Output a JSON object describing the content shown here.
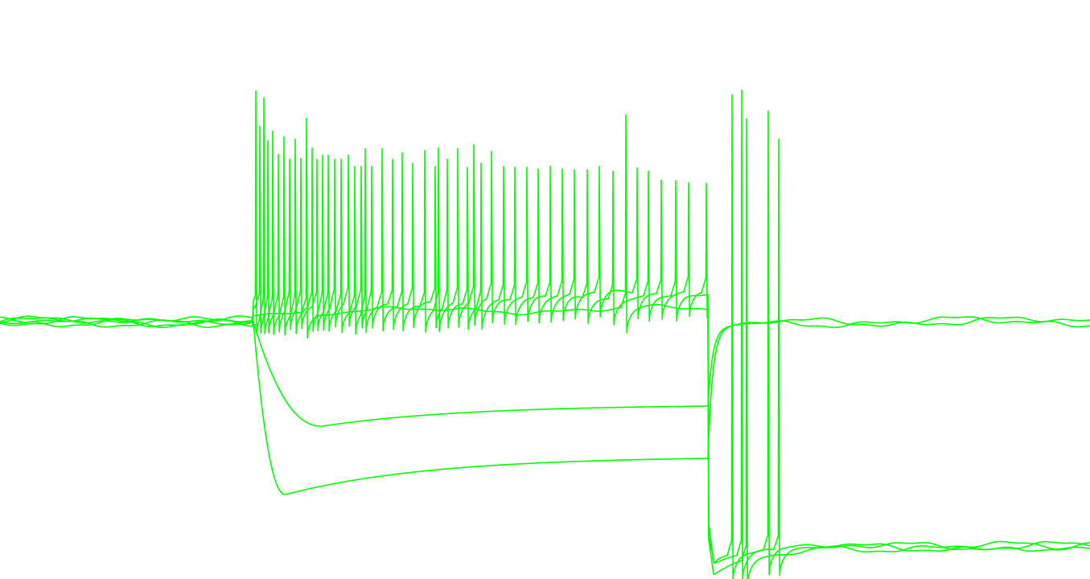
{
  "chart_data": {
    "type": "line",
    "title": "",
    "xlabel": "",
    "ylabel": "",
    "axes_visible": false,
    "grid": false,
    "legend": "none",
    "color": "#00ff00",
    "background": "#ffffff",
    "xlim": [
      0,
      1355
    ],
    "ylim": [
      -150,
      30
    ],
    "step_onset": 315,
    "step_offset": 880,
    "baseline": -70,
    "series": [
      {
        "kind": "hyperpolarizing",
        "min": -123.75,
        "min_time": 355,
        "steady": -112.5,
        "spikes": []
      },
      {
        "kind": "hyperpolarizing",
        "min": -102.5,
        "min_time": 400,
        "steady": -96.25,
        "spikes": []
      },
      {
        "kind": "depolarizing",
        "plateau_start": -67,
        "plateau_end": -66,
        "after_min": -80,
        "spikes": [
          [
            381,
            -6.75
          ],
          [
            778,
            -5.75
          ],
          [
            928,
            -7
          ]
        ]
      },
      {
        "kind": "depolarizing",
        "plateau_start": -66,
        "plateau_end": -60,
        "after_min": -74,
        "spikes": [
          [
            318,
            1.75
          ],
          [
            328,
            -0.5
          ],
          [
            339,
            -10.75
          ],
          [
            353,
            -12.5
          ],
          [
            367,
            -13.25
          ],
          [
            388,
            -16
          ],
          [
            401,
            -18.25
          ],
          [
            416,
            -19.5
          ],
          [
            433,
            -18.25
          ],
          [
            449,
            -21.75
          ],
          [
            462,
            -21.75
          ],
          [
            488,
            -19.5
          ],
          [
            513,
            -20.75
          ],
          [
            541,
            -21.75
          ],
          [
            556,
            -19.5
          ],
          [
            581,
            -22
          ],
          [
            598,
            -20.75
          ],
          [
            626,
            -21.75
          ],
          [
            655,
            -22
          ],
          [
            684,
            -21.75
          ],
          [
            714,
            -22.75
          ],
          [
            745,
            -21.75
          ],
          [
            792,
            -22.25
          ],
          [
            822,
            -26
          ],
          [
            856,
            -26.75
          ],
          [
            878,
            -27
          ],
          [
            910,
            0.5
          ],
          [
            955,
            -4.5
          ]
        ]
      },
      {
        "kind": "depolarizing",
        "plateau_start": -66,
        "plateau_end": -61,
        "after_min": -76,
        "spikes": [
          [
            323,
            -9.25
          ],
          [
            333,
            -13.75
          ],
          [
            346,
            -18
          ],
          [
            360,
            -19.5
          ],
          [
            374,
            -19.25
          ],
          [
            394,
            -19.5
          ],
          [
            408,
            -18.25
          ],
          [
            424,
            -19.5
          ],
          [
            441,
            -21.75
          ],
          [
            454,
            -16.25
          ],
          [
            475,
            -16.25
          ],
          [
            500,
            -17.5
          ],
          [
            528,
            -16.75
          ],
          [
            545,
            -16
          ],
          [
            569,
            -16.25
          ],
          [
            589,
            -15
          ],
          [
            611,
            -17
          ],
          [
            640,
            -22
          ],
          [
            669,
            -22.5
          ],
          [
            699,
            -22.5
          ],
          [
            730,
            -22.75
          ],
          [
            762,
            -23.25
          ],
          [
            806,
            -23.25
          ],
          [
            840,
            -26.25
          ],
          [
            922,
            2
          ],
          [
            968,
            -13.25
          ]
        ]
      }
    ]
  }
}
